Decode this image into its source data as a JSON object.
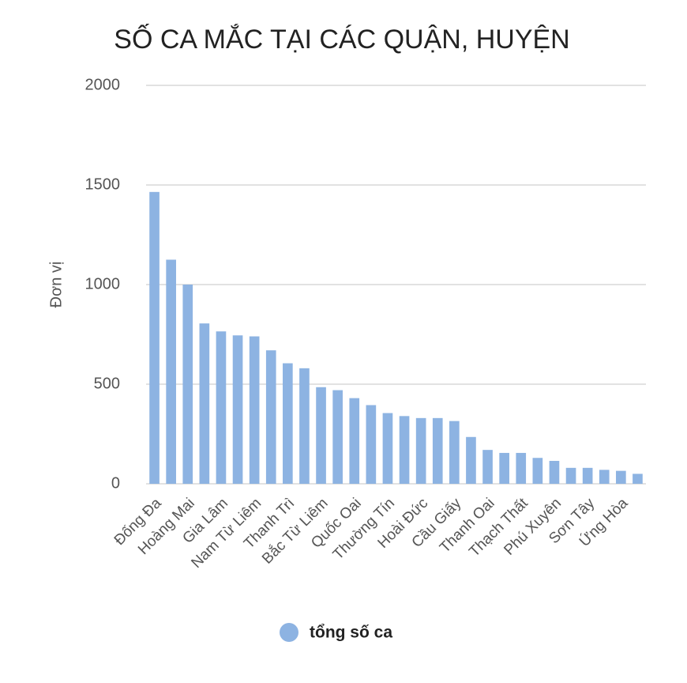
{
  "chart_data": {
    "type": "bar",
    "title": "SỐ CA MẮC TẠI CÁC QUẬN, HUYỆN",
    "y_label": "Đơn vị",
    "categories": [
      "Đống Đa",
      null,
      "Hoàng Mai",
      null,
      "Gia Lâm",
      null,
      "Nam Từ Liêm",
      null,
      "Thanh Trì",
      null,
      "Bắc Từ Liêm",
      null,
      "Quốc Oai",
      null,
      "Thường Tín",
      null,
      "Hoài Đức",
      null,
      "Cầu Giấy",
      null,
      "Thanh Oai",
      null,
      "Thạch Thất",
      null,
      "Phú Xuyên",
      null,
      "Sơn Tây",
      null,
      "Ứng Hòa",
      null
    ],
    "series": [
      {
        "name": "tổng số ca",
        "color": "#8db3e2",
        "values": [
          1465,
          1125,
          1000,
          805,
          765,
          745,
          740,
          670,
          605,
          580,
          485,
          470,
          430,
          395,
          355,
          340,
          330,
          330,
          315,
          235,
          170,
          155,
          155,
          130,
          115,
          80,
          80,
          70,
          65,
          50
        ]
      }
    ],
    "ylim": [
      0,
      2000
    ],
    "yticks": [
      0,
      500,
      1000,
      1500,
      2000
    ],
    "grid": true,
    "legend": "bottom"
  }
}
